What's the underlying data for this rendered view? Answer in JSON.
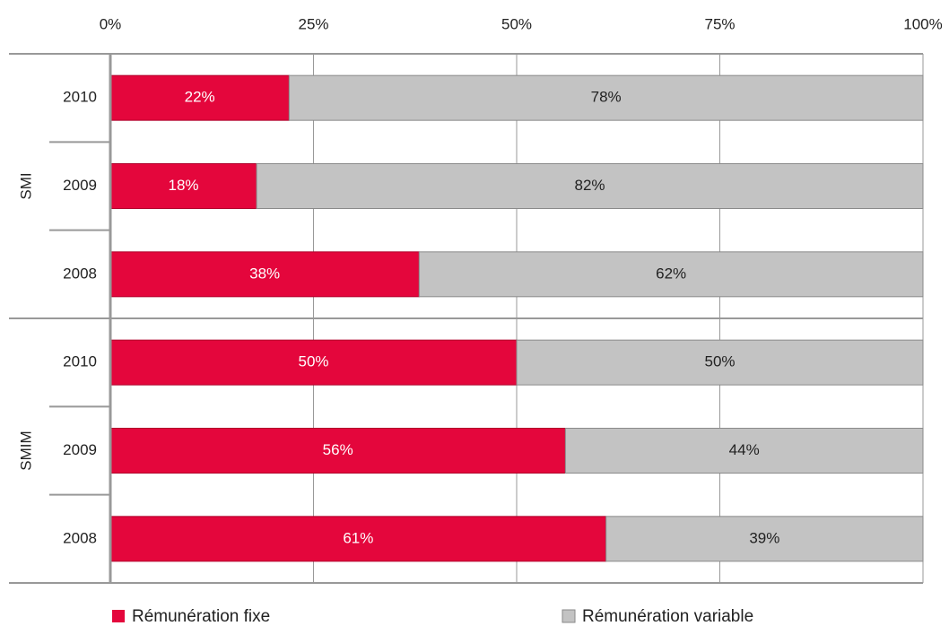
{
  "chart_data": {
    "type": "stacked-bar-horizontal",
    "groups": [
      {
        "label": "SMI",
        "categories": [
          "2010",
          "2009",
          "2008"
        ]
      },
      {
        "label": "SMIM",
        "categories": [
          "2010",
          "2009",
          "2008"
        ]
      }
    ],
    "series": [
      {
        "name": "Rémunération fixe",
        "color": "#e4063c",
        "values": [
          22,
          18,
          38,
          50,
          56,
          61
        ],
        "value_labels": [
          "22%",
          "18%",
          "38%",
          "50%",
          "56%",
          "61%"
        ]
      },
      {
        "name": "Rémunération variable",
        "color": "#c3c3c3",
        "values": [
          78,
          82,
          62,
          50,
          44,
          39
        ],
        "value_labels": [
          "78%",
          "82%",
          "62%",
          "50%",
          "44%",
          "39%"
        ]
      }
    ],
    "xlim": [
      0,
      100
    ],
    "xticks": [
      {
        "value": 0,
        "label": "0%"
      },
      {
        "value": 25,
        "label": "25%"
      },
      {
        "value": 50,
        "label": "50%"
      },
      {
        "value": 75,
        "label": "75%"
      },
      {
        "value": 100,
        "label": "100%"
      }
    ],
    "grid": true
  }
}
